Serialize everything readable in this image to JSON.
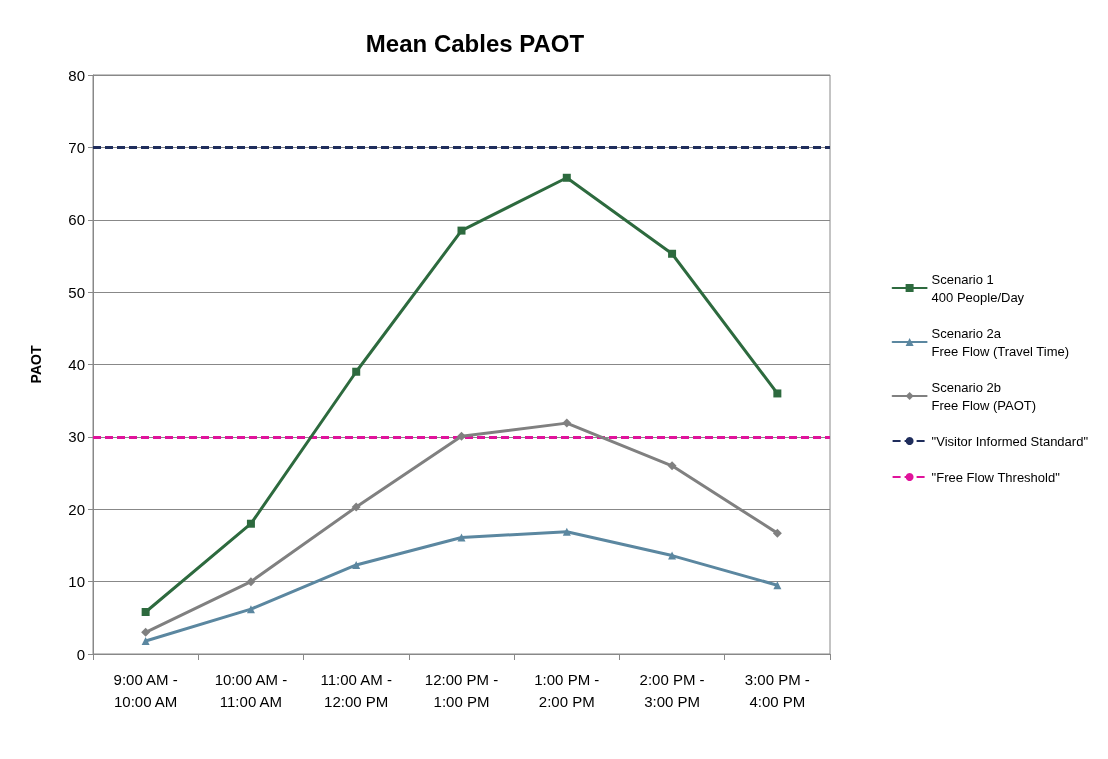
{
  "chart_data": {
    "type": "line",
    "title": "Mean Cables PAOT",
    "ylabel": "PAOT",
    "categories": [
      "9:00 AM -\n10:00 AM",
      "10:00 AM -\n11:00 AM",
      "11:00 AM -\n12:00 PM",
      "12:00 PM -\n1:00 PM",
      "1:00 PM -\n2:00 PM",
      "2:00 PM -\n3:00 PM",
      "3:00 PM -\n4:00 PM"
    ],
    "series": [
      {
        "name": "Scenario 1\n400 People/Day",
        "color": "#2d6a3e",
        "marker": "square",
        "values": [
          5.8,
          18,
          39,
          58.5,
          65.8,
          55.3,
          36
        ]
      },
      {
        "name": "Scenario 2a\nFree Flow (Travel Time)",
        "color": "#5b87a0",
        "marker": "triangle",
        "values": [
          1.8,
          6.2,
          12.3,
          16.1,
          16.9,
          13.6,
          9.5
        ]
      },
      {
        "name": "Scenario 2b\nFree Flow (PAOT)",
        "color": "#808080",
        "marker": "diamond",
        "values": [
          3,
          10,
          20.3,
          30.1,
          31.9,
          26,
          16.7
        ]
      }
    ],
    "ref_lines": [
      {
        "axis": "y",
        "value": 70,
        "label": "\"Visitor Informed Standard\"",
        "color": "#1f2d5c",
        "line_style": "dashed"
      },
      {
        "axis": "y",
        "value": 30,
        "label": "\"Free Flow Threshold\"",
        "color": "#e0139b",
        "line_style": "dashed"
      }
    ],
    "ylim": [
      0,
      80
    ],
    "yticks": [
      0,
      10,
      20,
      30,
      40,
      50,
      60,
      70,
      80
    ],
    "grid": "y",
    "legend": "right",
    "line_style": "solid"
  }
}
